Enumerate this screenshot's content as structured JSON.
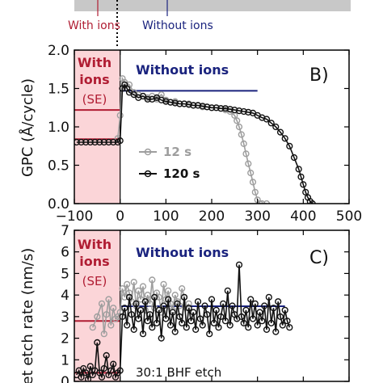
{
  "header": {
    "with_ions_label": "With ions",
    "without_ions_label": "Without ions",
    "with_color": "#b01d33",
    "without_color": "#1a237e"
  },
  "colors": {
    "shade": "#fbd5d8",
    "with_ions": "#b01d33",
    "without_ions": "#1a237e",
    "series_12s": "#9e9e9e",
    "series_120s": "#111111",
    "top_bar": "#c8c8c8"
  },
  "chart_data": [
    {
      "type": "scatter",
      "panel_label": "B)",
      "ylabel": "GPC (Å/cycle)",
      "xlim": [
        -100,
        500
      ],
      "ylim": [
        0,
        2.0
      ],
      "x_ticks": [
        -100,
        0,
        100,
        200,
        300,
        400,
        500
      ],
      "x_tick_labels": [
        "−100",
        "0",
        "100",
        "200",
        "300",
        "400",
        "500"
      ],
      "y_ticks": [
        0.0,
        0.5,
        1.0,
        1.5,
        2.0
      ],
      "y_tick_labels": [
        "0.0",
        "0.5",
        "1.0",
        "1.5",
        "2.0"
      ],
      "region_label_with": [
        "With",
        "ions",
        "(SE)"
      ],
      "region_label_without": "Without ions",
      "with_ions_levels": [
        1.22,
        0.84
      ],
      "without_ions_level": 1.47,
      "without_ions_line_range": [
        0,
        300
      ],
      "legend": [
        {
          "name": "12 s",
          "color": "#9e9e9e"
        },
        {
          "name": "120 s",
          "color": "#111111"
        }
      ],
      "series": [
        {
          "name": "12 s",
          "x": [
            -5,
            0,
            5,
            10,
            20,
            30,
            40,
            50,
            60,
            70,
            80,
            90,
            100,
            110,
            120,
            130,
            140,
            150,
            160,
            170,
            180,
            190,
            200,
            210,
            220,
            230,
            240,
            250,
            255,
            260,
            265,
            270,
            275,
            280,
            285,
            290,
            295,
            300,
            305,
            310,
            320
          ],
          "y": [
            0.85,
            1.15,
            1.63,
            1.58,
            1.55,
            1.45,
            1.42,
            1.4,
            1.38,
            1.4,
            1.36,
            1.42,
            1.35,
            1.32,
            1.33,
            1.3,
            1.3,
            1.3,
            1.28,
            1.28,
            1.26,
            1.26,
            1.25,
            1.25,
            1.24,
            1.22,
            1.2,
            1.15,
            1.08,
            1.0,
            0.9,
            0.78,
            0.65,
            0.52,
            0.4,
            0.28,
            0.15,
            0.05,
            0.0,
            0.0,
            0.0
          ]
        },
        {
          "name": "120 s",
          "x": [
            -95,
            -85,
            -75,
            -65,
            -55,
            -45,
            -35,
            -25,
            -15,
            -5,
            0,
            5,
            10,
            15,
            20,
            30,
            40,
            50,
            60,
            70,
            80,
            90,
            100,
            110,
            120,
            130,
            140,
            150,
            160,
            170,
            180,
            190,
            200,
            210,
            220,
            230,
            240,
            250,
            260,
            270,
            280,
            290,
            300,
            310,
            320,
            330,
            340,
            350,
            360,
            370,
            380,
            390,
            395,
            400,
            405,
            410,
            415,
            420
          ],
          "y": [
            0.8,
            0.8,
            0.8,
            0.8,
            0.8,
            0.8,
            0.8,
            0.8,
            0.8,
            0.8,
            0.82,
            1.5,
            1.55,
            1.5,
            1.45,
            1.42,
            1.38,
            1.4,
            1.36,
            1.36,
            1.38,
            1.35,
            1.33,
            1.32,
            1.31,
            1.3,
            1.3,
            1.29,
            1.28,
            1.28,
            1.27,
            1.26,
            1.25,
            1.25,
            1.24,
            1.24,
            1.23,
            1.22,
            1.21,
            1.2,
            1.19,
            1.18,
            1.15,
            1.12,
            1.1,
            1.05,
            1.0,
            0.93,
            0.85,
            0.75,
            0.6,
            0.45,
            0.35,
            0.25,
            0.15,
            0.08,
            0.03,
            0.0
          ]
        }
      ]
    },
    {
      "type": "scatter",
      "panel_label": "C)",
      "ylabel": "Wet etch rate (nm/s)",
      "xlim": [
        -100,
        500
      ],
      "ylim": [
        0,
        7
      ],
      "y_ticks": [
        0,
        1,
        2,
        3,
        4,
        5,
        6,
        7
      ],
      "y_tick_labels": [
        "0",
        "1",
        "2",
        "3",
        "4",
        "5",
        "6",
        "7"
      ],
      "region_label_with": [
        "With",
        "ions",
        "(SE)"
      ],
      "region_label_without": "Without ions",
      "with_ions_level": 2.8,
      "with_ions_low_level": 0.4,
      "without_ions_level": 3.48,
      "without_ions_line_range": [
        0,
        360
      ],
      "annotation": "30:1 BHF etch",
      "series": [
        {
          "name": "12 s",
          "x": [
            -60,
            -50,
            -40,
            -35,
            -30,
            -25,
            -20,
            -15,
            -10,
            -5,
            0,
            5,
            10,
            15,
            20,
            25,
            30,
            35,
            40,
            45,
            50,
            55,
            60,
            65,
            70,
            75,
            80,
            85,
            90,
            95,
            100,
            105,
            110,
            115,
            120,
            125,
            130,
            135,
            140,
            145,
            150
          ],
          "y": [
            2.5,
            3.0,
            3.6,
            2.2,
            3.1,
            3.8,
            2.6,
            3.4,
            2.9,
            3.0,
            3.2,
            4.3,
            3.9,
            4.5,
            4.1,
            3.7,
            4.6,
            3.5,
            4.2,
            3.8,
            4.4,
            3.3,
            4.0,
            3.6,
            4.7,
            3.4,
            4.1,
            3.9,
            3.2,
            4.5,
            3.8,
            4.2,
            3.6,
            3.3,
            4.0,
            3.7,
            3.5,
            4.3,
            3.9,
            3.4,
            3.6
          ]
        },
        {
          "name": "120 s",
          "x": [
            -95,
            -90,
            -85,
            -80,
            -75,
            -70,
            -65,
            -60,
            -55,
            -50,
            -45,
            -40,
            -35,
            -30,
            -25,
            -20,
            -15,
            -10,
            -5,
            0,
            5,
            10,
            15,
            20,
            25,
            30,
            35,
            40,
            45,
            50,
            55,
            60,
            65,
            70,
            75,
            80,
            85,
            90,
            95,
            100,
            105,
            110,
            115,
            120,
            125,
            130,
            135,
            140,
            145,
            150,
            155,
            160,
            165,
            170,
            175,
            180,
            185,
            190,
            195,
            200,
            205,
            210,
            215,
            220,
            225,
            230,
            235,
            240,
            245,
            250,
            255,
            260,
            265,
            270,
            275,
            280,
            285,
            290,
            295,
            300,
            305,
            310,
            315,
            320,
            325,
            330,
            335,
            340,
            345,
            350,
            355,
            360,
            365,
            370
          ],
          "y": [
            0.3,
            0.5,
            0.2,
            0.6,
            0.4,
            0.1,
            0.7,
            0.3,
            0.5,
            1.8,
            0.4,
            0.2,
            0.6,
            1.2,
            0.3,
            0.5,
            0.8,
            0.2,
            0.4,
            0.5,
            3.0,
            3.4,
            2.6,
            3.9,
            3.1,
            2.4,
            3.6,
            2.9,
            3.3,
            2.2,
            3.7,
            2.8,
            3.1,
            2.5,
            3.9,
            2.7,
            3.3,
            2.0,
            3.5,
            2.9,
            3.8,
            2.6,
            3.2,
            2.3,
            3.6,
            3.0,
            2.7,
            3.9,
            2.5,
            3.4,
            2.8,
            3.2,
            2.4,
            3.7,
            2.9,
            2.6,
            3.5,
            3.1,
            2.2,
            3.8,
            2.7,
            3.3,
            2.5,
            3.0,
            3.6,
            2.8,
            4.2,
            2.6,
            3.5,
            3.1,
            2.9,
            5.4,
            3.0,
            2.7,
            3.3,
            2.5,
            3.8,
            2.9,
            3.6,
            2.6,
            3.2,
            2.8,
            3.5,
            2.4,
            3.9,
            2.7,
            3.4,
            2.3,
            3.7,
            3.0,
            2.6,
            3.3,
            2.8,
            2.5
          ]
        }
      ]
    }
  ]
}
